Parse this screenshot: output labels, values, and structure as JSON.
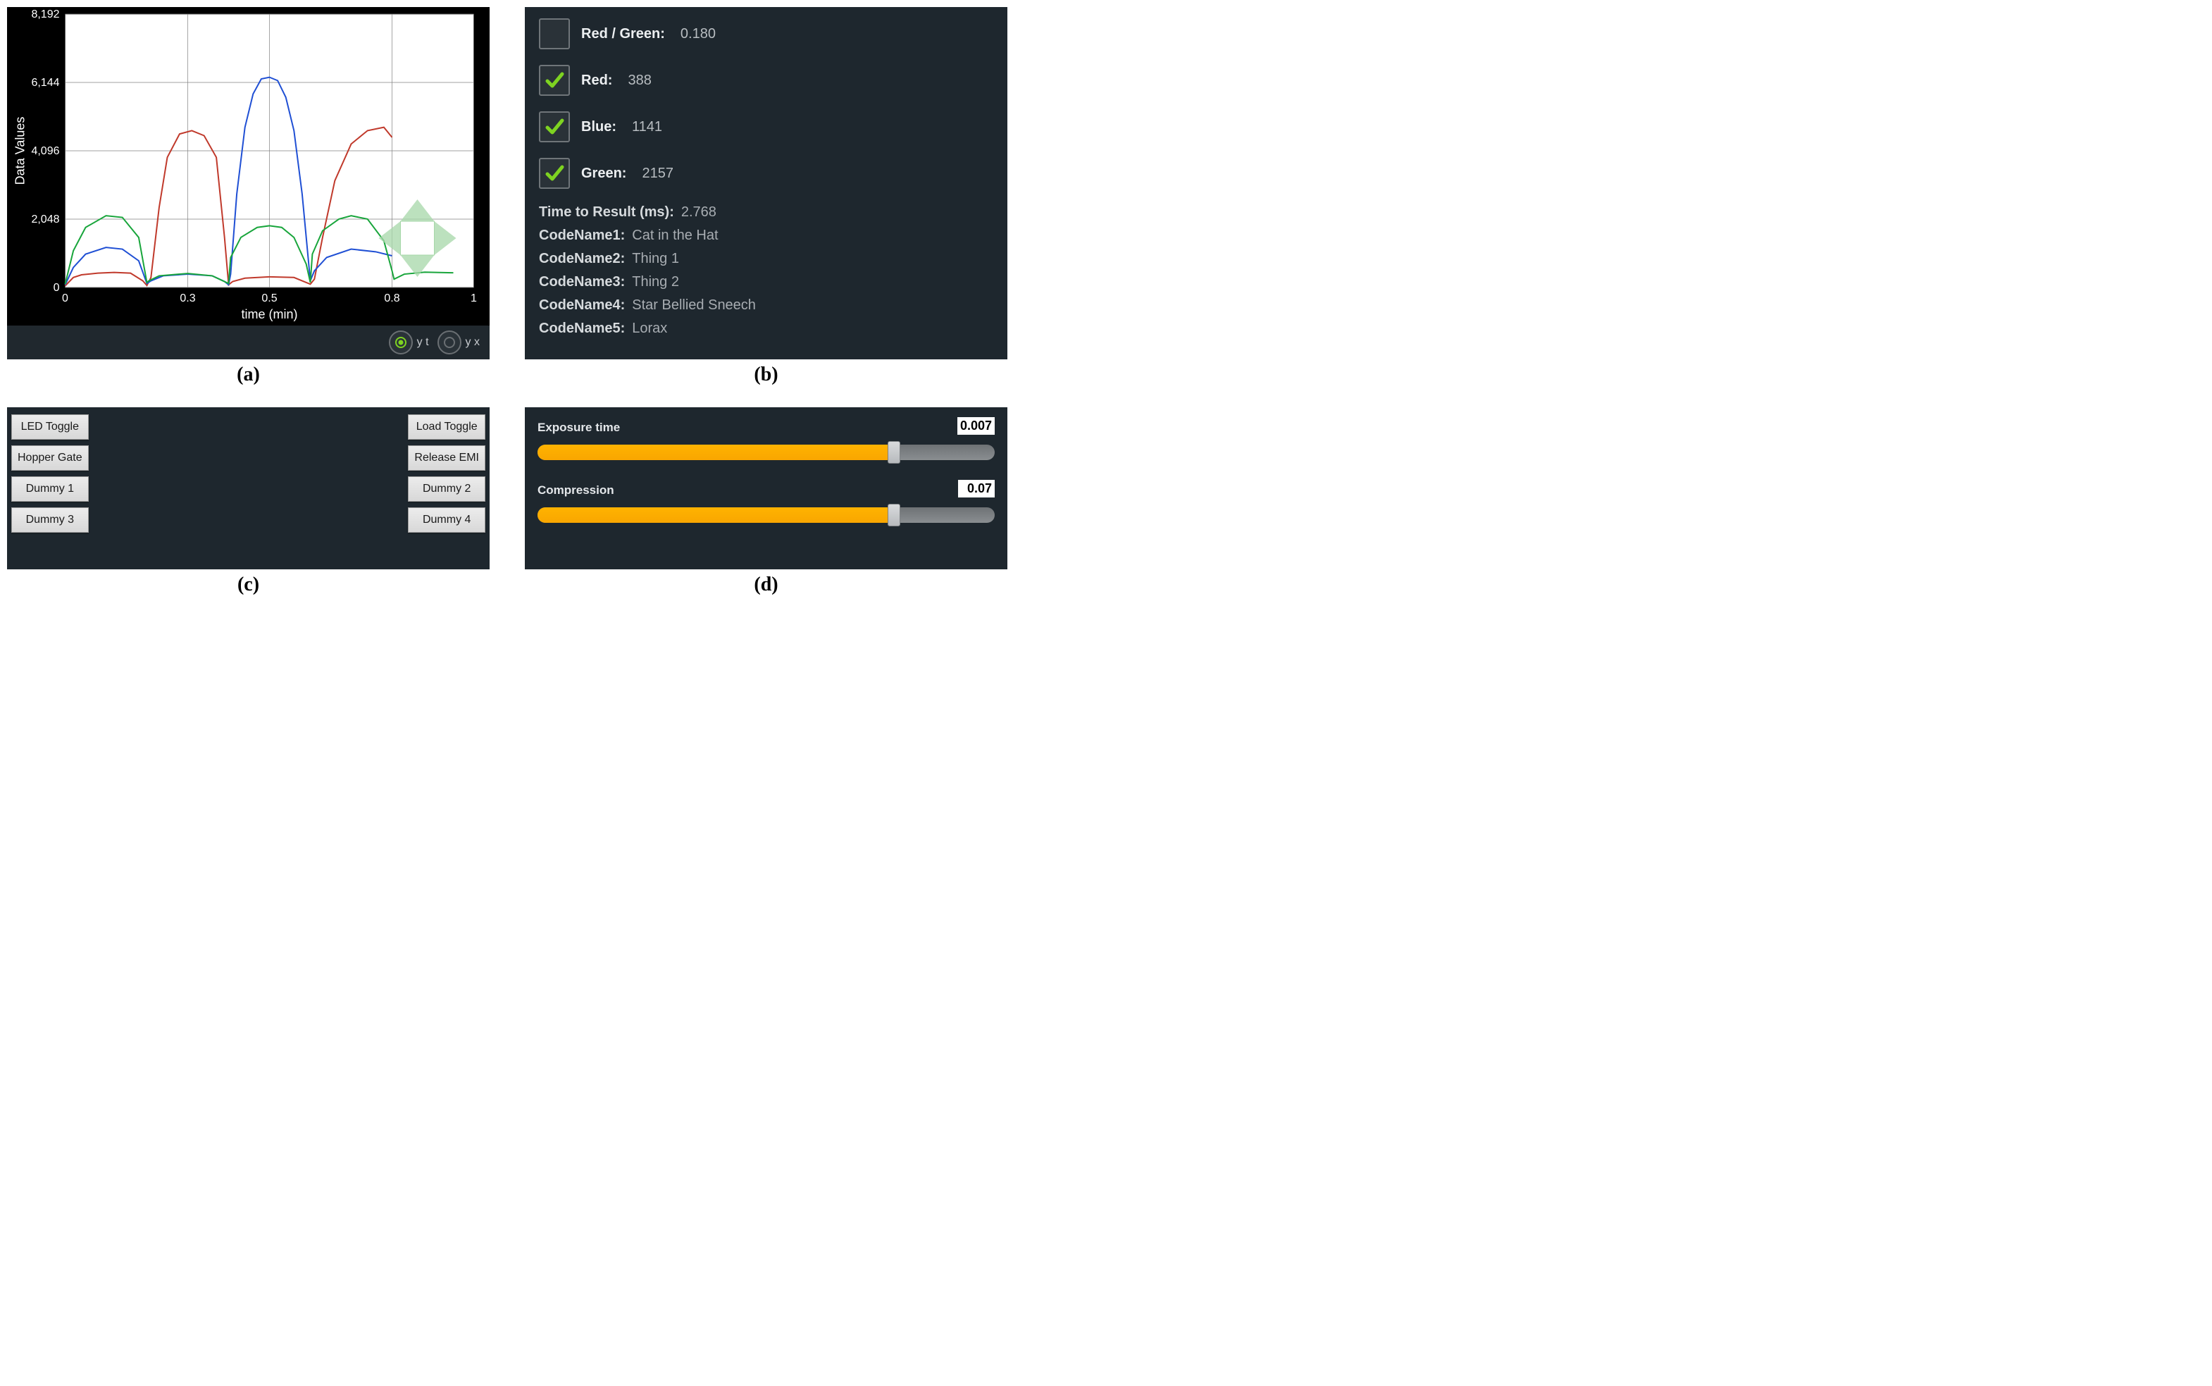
{
  "captions": {
    "a": "(a)",
    "b": "(b)",
    "c": "(c)",
    "d": "(d)"
  },
  "chart": {
    "type": "line",
    "background_outer": "#000000",
    "background_plot": "#ffffff",
    "grid_color": "#808080",
    "axis_color": "#000000",
    "tick_color": "#ffffff",
    "x": {
      "label": "time (min)",
      "label_fontsize": 18,
      "lim": [
        0,
        1
      ],
      "ticks": [
        0,
        0.3,
        0.5,
        0.8,
        1
      ],
      "tick_labels": [
        "0",
        "0.3",
        "0.5",
        "0.8",
        "1"
      ]
    },
    "y": {
      "label": "Data Values",
      "label_fontsize": 18,
      "lim": [
        0,
        8192
      ],
      "ticks": [
        0,
        2048,
        4096,
        6144,
        8192
      ],
      "tick_labels": [
        "0",
        "2,048",
        "4,096",
        "6,144",
        "8,192"
      ]
    },
    "series": [
      {
        "name": "red",
        "color": "#c0392b",
        "width": 2,
        "points": [
          [
            0.0,
            50
          ],
          [
            0.02,
            300
          ],
          [
            0.04,
            380
          ],
          [
            0.08,
            430
          ],
          [
            0.12,
            450
          ],
          [
            0.16,
            430
          ],
          [
            0.19,
            200
          ],
          [
            0.2,
            60
          ],
          [
            0.21,
            300
          ],
          [
            0.23,
            2400
          ],
          [
            0.25,
            3900
          ],
          [
            0.28,
            4600
          ],
          [
            0.31,
            4700
          ],
          [
            0.34,
            4550
          ],
          [
            0.37,
            3900
          ],
          [
            0.39,
            1500
          ],
          [
            0.4,
            80
          ],
          [
            0.41,
            180
          ],
          [
            0.44,
            280
          ],
          [
            0.5,
            320
          ],
          [
            0.56,
            300
          ],
          [
            0.6,
            100
          ],
          [
            0.61,
            250
          ],
          [
            0.63,
            1500
          ],
          [
            0.66,
            3200
          ],
          [
            0.7,
            4300
          ],
          [
            0.74,
            4700
          ],
          [
            0.78,
            4800
          ],
          [
            0.8,
            4500
          ]
        ]
      },
      {
        "name": "blue",
        "color": "#1f4fd4",
        "width": 2,
        "points": [
          [
            0.0,
            80
          ],
          [
            0.02,
            600
          ],
          [
            0.05,
            1000
          ],
          [
            0.1,
            1200
          ],
          [
            0.14,
            1150
          ],
          [
            0.18,
            800
          ],
          [
            0.2,
            120
          ],
          [
            0.21,
            200
          ],
          [
            0.24,
            350
          ],
          [
            0.3,
            400
          ],
          [
            0.36,
            350
          ],
          [
            0.39,
            180
          ],
          [
            0.4,
            80
          ],
          [
            0.405,
            400
          ],
          [
            0.42,
            2800
          ],
          [
            0.44,
            4800
          ],
          [
            0.46,
            5800
          ],
          [
            0.48,
            6250
          ],
          [
            0.5,
            6300
          ],
          [
            0.52,
            6200
          ],
          [
            0.54,
            5700
          ],
          [
            0.56,
            4700
          ],
          [
            0.58,
            2800
          ],
          [
            0.6,
            200
          ],
          [
            0.61,
            500
          ],
          [
            0.64,
            900
          ],
          [
            0.7,
            1150
          ],
          [
            0.76,
            1070
          ],
          [
            0.8,
            950
          ]
        ]
      },
      {
        "name": "green",
        "color": "#18a53b",
        "width": 2,
        "points": [
          [
            0.0,
            100
          ],
          [
            0.02,
            1100
          ],
          [
            0.05,
            1800
          ],
          [
            0.1,
            2150
          ],
          [
            0.14,
            2100
          ],
          [
            0.18,
            1500
          ],
          [
            0.2,
            150
          ],
          [
            0.205,
            200
          ],
          [
            0.23,
            350
          ],
          [
            0.3,
            420
          ],
          [
            0.36,
            350
          ],
          [
            0.4,
            120
          ],
          [
            0.405,
            900
          ],
          [
            0.43,
            1500
          ],
          [
            0.47,
            1800
          ],
          [
            0.5,
            1850
          ],
          [
            0.53,
            1800
          ],
          [
            0.56,
            1500
          ],
          [
            0.59,
            700
          ],
          [
            0.6,
            150
          ],
          [
            0.605,
            1000
          ],
          [
            0.63,
            1700
          ],
          [
            0.67,
            2050
          ],
          [
            0.7,
            2150
          ],
          [
            0.74,
            2050
          ],
          [
            0.78,
            1400
          ],
          [
            0.8,
            500
          ],
          [
            0.805,
            250
          ],
          [
            0.83,
            400
          ],
          [
            0.88,
            460
          ],
          [
            0.95,
            440
          ]
        ]
      }
    ],
    "nav_diamond_color": "#a6d7a8",
    "toggles": {
      "yt_label": "y t",
      "yx_label": "y x",
      "yt_active": true
    }
  },
  "panel_b": {
    "items": [
      {
        "label": "Red / Green:",
        "value": "0.180",
        "checked": false
      },
      {
        "label": "Red:",
        "value": "388",
        "checked": true
      },
      {
        "label": "Blue:",
        "value": "1141",
        "checked": true
      },
      {
        "label": "Green:",
        "value": "2157",
        "checked": true
      }
    ],
    "meta": [
      {
        "k": "Time to Result (ms):",
        "v": "2.768"
      },
      {
        "k": "CodeName1:",
        "v": "Cat in the Hat"
      },
      {
        "k": "CodeName2:",
        "v": "Thing 1"
      },
      {
        "k": "CodeName3:",
        "v": "Thing 2"
      },
      {
        "k": "CodeName4:",
        "v": "Star Bellied Sneech"
      },
      {
        "k": "CodeName5:",
        "v": "Lorax"
      }
    ],
    "check_color": "#7ed321"
  },
  "panel_c": {
    "left": [
      "LED Toggle",
      "Hopper Gate",
      "Dummy 1",
      "Dummy 3"
    ],
    "right": [
      "Load Toggle",
      "Release EMI",
      "Dummy 2",
      "Dummy 4"
    ]
  },
  "panel_d": {
    "sliders": [
      {
        "name": "exposure",
        "label": "Exposure time",
        "value": "0.007",
        "fill_pct": 78
      },
      {
        "name": "compression",
        "label": "Compression",
        "value": "0.07",
        "fill_pct": 78
      }
    ],
    "track_bg": "#808488",
    "fill_color": "#f9a600"
  }
}
